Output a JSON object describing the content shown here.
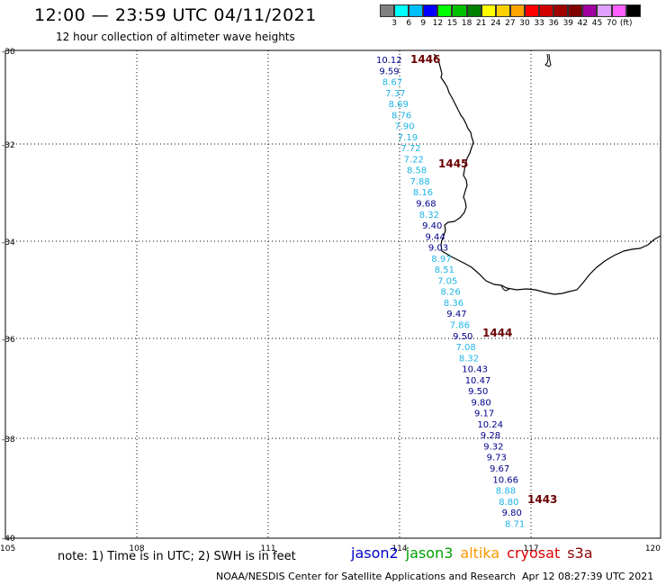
{
  "header": {
    "title": "12:00 — 23:59 UTC 04/11/2021",
    "subtitle": "12 hour collection of altimeter wave heights"
  },
  "scale": {
    "colors": [
      "#808080",
      "#00ffff",
      "#00bfff",
      "#0000ff",
      "#00ff00",
      "#00c000",
      "#008000",
      "#ffff00",
      "#ffd000",
      "#ffa500",
      "#ff0000",
      "#d00000",
      "#a00000",
      "#800000",
      "#a000a0",
      "#e0a0ff",
      "#ff60ff",
      "#000000"
    ],
    "labels": [
      "3",
      "6",
      "9",
      "12",
      "15",
      "18",
      "21",
      "24",
      "27",
      "30",
      "33",
      "36",
      "39",
      "42",
      "45",
      "70",
      "(ft)"
    ]
  },
  "axes": {
    "lat_labels": [
      "-30",
      "-32",
      "-34",
      "-36",
      "-38",
      "-40"
    ],
    "lon_labels": [
      "105",
      "108",
      "111",
      "114",
      "117",
      "120"
    ]
  },
  "colors": {
    "jason2": "#0000c8",
    "jason3": "#00a000",
    "altika": "#ff9900",
    "cryosat": "#dd0000",
    "s3a": "#8b0000",
    "dark_blue": "#00008b",
    "light_blue": "#1fb4e6",
    "coast": "#000000"
  },
  "passes": [
    "1446",
    "1445",
    "1444",
    "1443"
  ],
  "observations": [
    {
      "text": "10.12",
      "color": "dark"
    },
    {
      "text": "9.59",
      "color": "dark"
    },
    {
      "text": "8.67",
      "color": "light"
    },
    {
      "text": "7.37",
      "color": "light"
    },
    {
      "text": "8.69",
      "color": "light"
    },
    {
      "text": "8.76",
      "color": "light"
    },
    {
      "text": "7.90",
      "color": "light"
    },
    {
      "text": "7.19",
      "color": "light"
    },
    {
      "text": "7.72",
      "color": "light"
    },
    {
      "text": "7.22",
      "color": "light"
    },
    {
      "text": "8.58",
      "color": "light"
    },
    {
      "text": "7.88",
      "color": "light"
    },
    {
      "text": "8.16",
      "color": "light"
    },
    {
      "text": "9.68",
      "color": "dark"
    },
    {
      "text": "8.32",
      "color": "light"
    },
    {
      "text": "9.40",
      "color": "dark"
    },
    {
      "text": "9.44",
      "color": "dark"
    },
    {
      "text": "9.03",
      "color": "dark"
    },
    {
      "text": "8.97",
      "color": "light"
    },
    {
      "text": "8.51",
      "color": "light"
    },
    {
      "text": "7.05",
      "color": "light"
    },
    {
      "text": "8.26",
      "color": "light"
    },
    {
      "text": "8.36",
      "color": "light"
    },
    {
      "text": "9.47",
      "color": "dark"
    },
    {
      "text": "7.86",
      "color": "light"
    },
    {
      "text": "9.50",
      "color": "dark"
    },
    {
      "text": "7.08",
      "color": "light"
    },
    {
      "text": "8.32",
      "color": "light"
    },
    {
      "text": "10.43",
      "color": "dark"
    },
    {
      "text": "10.47",
      "color": "dark"
    },
    {
      "text": "9.50",
      "color": "dark"
    },
    {
      "text": "9.80",
      "color": "dark"
    },
    {
      "text": "9.17",
      "color": "dark"
    },
    {
      "text": "10.24",
      "color": "dark"
    },
    {
      "text": "9.28",
      "color": "dark"
    },
    {
      "text": "9.32",
      "color": "dark"
    },
    {
      "text": "9.73",
      "color": "dark"
    },
    {
      "text": "9.67",
      "color": "dark"
    },
    {
      "text": "10.66",
      "color": "dark"
    },
    {
      "text": "8.88",
      "color": "light"
    },
    {
      "text": "8.80",
      "color": "light"
    },
    {
      "text": "9.80",
      "color": "dark"
    },
    {
      "text": "8.71",
      "color": "light"
    }
  ],
  "note": "note: 1) Time is in UTC; 2) SWH is in feet",
  "legend": [
    {
      "name": "jason2",
      "color": "#0000c8"
    },
    {
      "name": "jason3",
      "color": "#00a000"
    },
    {
      "name": "altika",
      "color": "#ff9900"
    },
    {
      "name": "cryosat",
      "color": "#dd0000"
    },
    {
      "name": "s3a",
      "color": "#8b0000"
    }
  ],
  "footer": {
    "credit": "NOAA/NESDIS Center for Satellite Applications and Research",
    "timestamp": "Apr 12 08:27:39 UTC 2021"
  }
}
